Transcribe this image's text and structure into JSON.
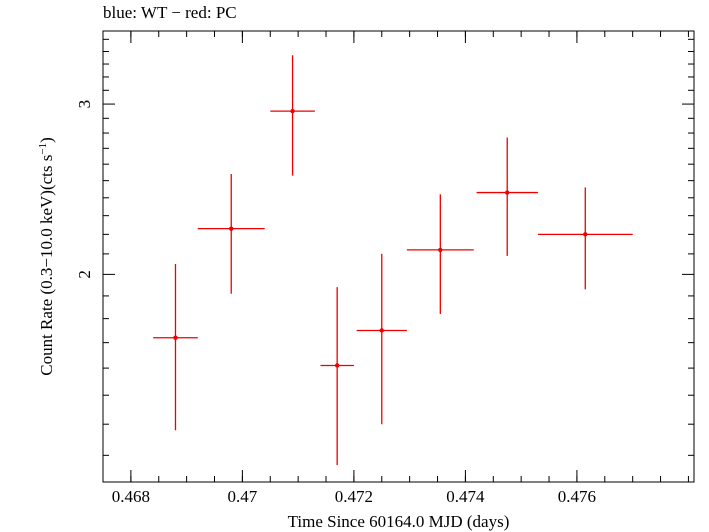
{
  "chart_data": {
    "type": "scatter",
    "title": "blue: WT − red: PC",
    "xlabel": "Time Since 60164.0 MJD (days)",
    "ylabel_main": "Count Rate (0.3−10.0 keV)(cts s",
    "ylabel_sup": "−1",
    "ylabel_end": ")",
    "xlim": [
      0.4675,
      0.4781
    ],
    "ylim": [
      1.22,
      3.57
    ],
    "log_y": true,
    "x_ticks": [
      0.468,
      0.47,
      0.472,
      0.474,
      0.476
    ],
    "x_tick_labels": [
      "0.468",
      "0.47",
      "0.472",
      "0.474",
      "0.476"
    ],
    "y_major_ticks": [
      2,
      3
    ],
    "y_tick_labels": [
      "2",
      "3"
    ],
    "y_minor_ticks": [
      1.3,
      1.4,
      1.5,
      1.6,
      1.7,
      1.8,
      1.9,
      2.1,
      2.2,
      2.3,
      2.4,
      2.5,
      2.6,
      2.7,
      2.8,
      2.9,
      3.1,
      3.2,
      3.3,
      3.4,
      3.5
    ],
    "x_minor_step": 0.0005,
    "grid": false,
    "series": [
      {
        "color": "#ee0000",
        "points": [
          {
            "x": 0.4688,
            "y": 1.72,
            "xerr": 0.0004,
            "yerr_lo": 0.34,
            "yerr_hi": 0.33
          },
          {
            "x": 0.4698,
            "y": 2.23,
            "xerr": 0.0006,
            "yerr_lo": 0.32,
            "yerr_hi": 0.31
          },
          {
            "x": 0.4709,
            "y": 2.95,
            "xerr": 0.0004,
            "yerr_lo": 0.42,
            "yerr_hi": 0.42
          },
          {
            "x": 0.4717,
            "y": 1.61,
            "xerr": 0.0003,
            "yerr_lo": 0.34,
            "yerr_hi": 0.33
          },
          {
            "x": 0.4725,
            "y": 1.75,
            "xerr": 0.00045,
            "yerr_lo": 0.35,
            "yerr_hi": 0.35
          },
          {
            "x": 0.47355,
            "y": 2.12,
            "xerr": 0.0006,
            "yerr_lo": 0.3,
            "yerr_hi": 0.3
          },
          {
            "x": 0.47475,
            "y": 2.43,
            "xerr": 0.00055,
            "yerr_lo": 0.34,
            "yerr_hi": 0.34
          },
          {
            "x": 0.47615,
            "y": 2.2,
            "xerr": 0.00085,
            "yerr_lo": 0.27,
            "yerr_hi": 0.26
          }
        ]
      }
    ]
  }
}
